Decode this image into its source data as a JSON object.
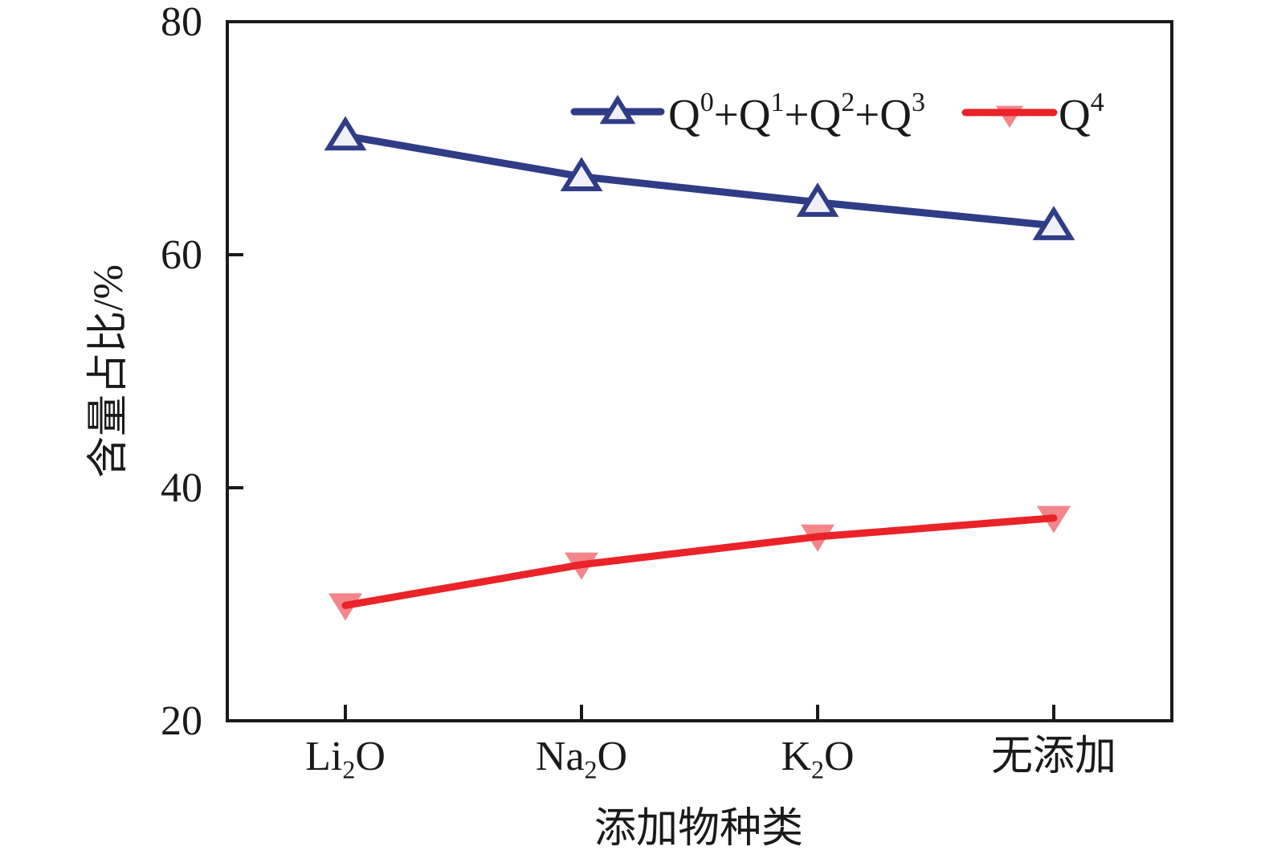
{
  "figure": {
    "background_color": "#ffffff",
    "axis_color": "#1a1a1a"
  },
  "chart_data": {
    "type": "line",
    "title": "",
    "categories": [
      "Li₂O",
      "Na₂O",
      "K₂O",
      "无添加"
    ],
    "xlabel": "添加物种类",
    "ylabel": "含量占比/%",
    "ylim": [
      20,
      80
    ],
    "yticks": [
      20,
      40,
      60,
      80
    ],
    "grid": false,
    "legend_position": "top-inside",
    "series": [
      {
        "name": "Q⁰+Q¹+Q²+Q³",
        "values": [
          70.2,
          66.7,
          64.5,
          62.5
        ],
        "color": "#2F3C86",
        "marker": "triangle-up",
        "marker_fill": "#F0F1F8",
        "marker_opacity": 1
      },
      {
        "name": "Q⁴",
        "values": [
          29.9,
          33.4,
          35.8,
          37.4
        ],
        "color": "#EA2329",
        "marker": "triangle-down",
        "marker_fill": "#EA2329",
        "marker_opacity": 0.55
      }
    ]
  }
}
